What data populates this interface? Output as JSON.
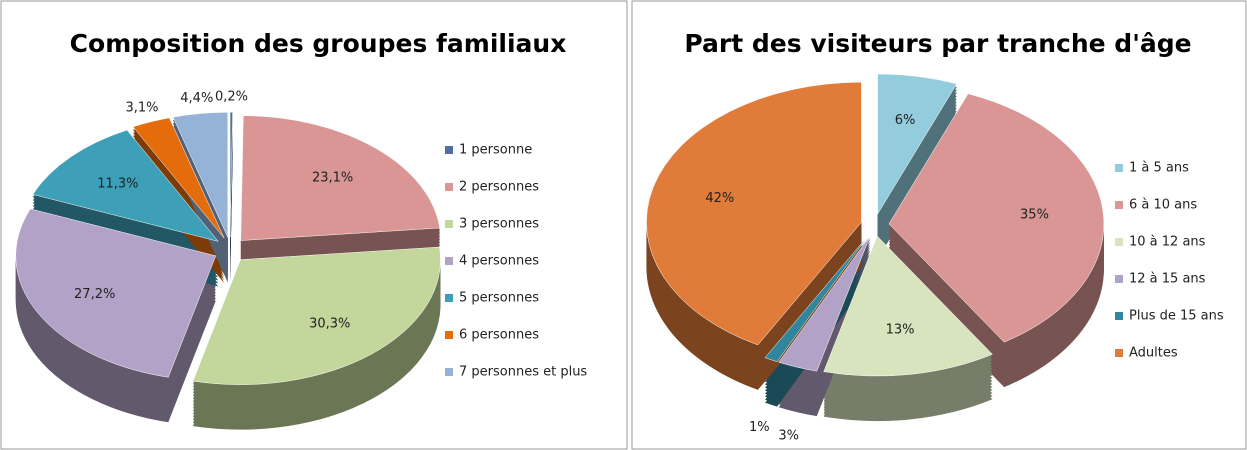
{
  "chart_data": [
    {
      "type": "pie",
      "title": "Composition des groupes familiaux",
      "categories": [
        "1 personne",
        "2 personnes",
        "3 personnes",
        "4 personnes",
        "5 personnes",
        "6 personnes",
        "7 personnes et plus"
      ],
      "values": [
        0.2,
        23.1,
        30.3,
        27.2,
        11.3,
        3.1,
        4.4
      ],
      "value_labels": [
        "0,2%",
        "23,1%",
        "30,3%",
        "27,2%",
        "11,3%",
        "3,1%",
        "4,4%"
      ],
      "colors": [
        "#4f6fa0",
        "#d99694",
        "#c3d69b",
        "#b3a2c7",
        "#3d9fb8",
        "#e46c0a",
        "#95b3d7"
      ]
    },
    {
      "type": "pie",
      "title": "Part des visiteurs par tranche d'âge",
      "categories": [
        "1 à 5 ans",
        "6 à 10 ans",
        "10 à 12 ans",
        "12 à 15 ans",
        "Plus de 15 ans",
        "Adultes"
      ],
      "values": [
        6,
        35,
        13,
        3,
        1,
        42
      ],
      "value_labels": [
        "6%",
        "35%",
        "13%",
        "3%",
        "1%",
        "42%"
      ],
      "colors": [
        "#93cddd",
        "#d99694",
        "#d7e4bd",
        "#b3a2c7",
        "#31859c",
        "#e07b39"
      ]
    }
  ]
}
